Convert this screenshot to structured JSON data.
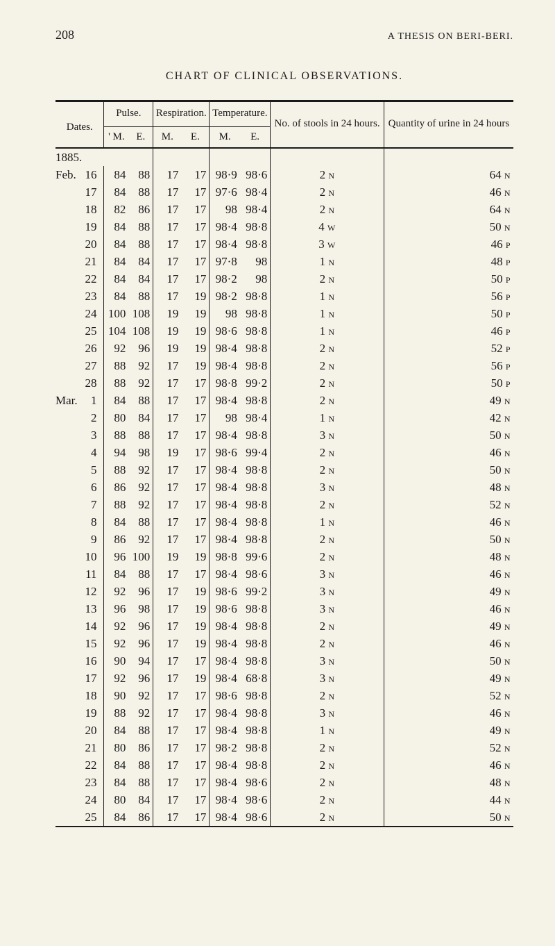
{
  "running_head": {
    "page_number": "208",
    "title": "A THESIS ON BERI-BERI."
  },
  "chart_title": "CHART OF CLINICAL OBSERVATIONS.",
  "header": {
    "dates": "Dates.",
    "pulse": "Pulse.",
    "respiration": "Respiration.",
    "temperature": "Temperature.",
    "stools": "No. of stools in 24 hours.",
    "urine": "Quantity of urine in 24 hours",
    "sub_m": "M.",
    "sub_e": "E.",
    "sub_m_prime": "' M."
  },
  "year": "1885.",
  "rows": [
    {
      "date": "Feb. 16",
      "pulse_m": "84",
      "pulse_e": "88",
      "resp_m": "17",
      "resp_e": "17",
      "temp_m": "98·9",
      "temp_e": "98·6",
      "stools": "2 N",
      "urine": "64 N"
    },
    {
      "date": "17",
      "pulse_m": "84",
      "pulse_e": "88",
      "resp_m": "17",
      "resp_e": "17",
      "temp_m": "97·6",
      "temp_e": "98·4",
      "stools": "2 N",
      "urine": "46 N"
    },
    {
      "date": "18",
      "pulse_m": "82",
      "pulse_e": "86",
      "resp_m": "17",
      "resp_e": "17",
      "temp_m": "98",
      "temp_e": "98·4",
      "stools": "2 N",
      "urine": "64 N"
    },
    {
      "date": "19",
      "pulse_m": "84",
      "pulse_e": "88",
      "resp_m": "17",
      "resp_e": "17",
      "temp_m": "98·4",
      "temp_e": "98·8",
      "stools": "4 W",
      "urine": "50 N"
    },
    {
      "date": "20",
      "pulse_m": "84",
      "pulse_e": "88",
      "resp_m": "17",
      "resp_e": "17",
      "temp_m": "98·4",
      "temp_e": "98·8",
      "stools": "3 W",
      "urine": "46 P"
    },
    {
      "date": "21",
      "pulse_m": "84",
      "pulse_e": "84",
      "resp_m": "17",
      "resp_e": "17",
      "temp_m": "97·8",
      "temp_e": "98",
      "stools": "1 N",
      "urine": "48 P"
    },
    {
      "date": "22",
      "pulse_m": "84",
      "pulse_e": "84",
      "resp_m": "17",
      "resp_e": "17",
      "temp_m": "98·2",
      "temp_e": "98",
      "stools": "2 N",
      "urine": "50 P"
    },
    {
      "date": "23",
      "pulse_m": "84",
      "pulse_e": "88",
      "resp_m": "17",
      "resp_e": "19",
      "temp_m": "98·2",
      "temp_e": "98·8",
      "stools": "1 N",
      "urine": "56 P"
    },
    {
      "date": "24",
      "pulse_m": "100",
      "pulse_e": "108",
      "resp_m": "19",
      "resp_e": "19",
      "temp_m": "98",
      "temp_e": "98·8",
      "stools": "1 N",
      "urine": "50 P"
    },
    {
      "date": "25",
      "pulse_m": "104",
      "pulse_e": "108",
      "resp_m": "19",
      "resp_e": "19",
      "temp_m": "98·6",
      "temp_e": "98·8",
      "stools": "1 N",
      "urine": "46 P"
    },
    {
      "date": "26",
      "pulse_m": "92",
      "pulse_e": "96",
      "resp_m": "19",
      "resp_e": "19",
      "temp_m": "98·4",
      "temp_e": "98·8",
      "stools": "2 N",
      "urine": "52 P"
    },
    {
      "date": "27",
      "pulse_m": "88",
      "pulse_e": "92",
      "resp_m": "17",
      "resp_e": "19",
      "temp_m": "98·4",
      "temp_e": "98·8",
      "stools": "2 N",
      "urine": "56 P"
    },
    {
      "date": "28",
      "pulse_m": "88",
      "pulse_e": "92",
      "resp_m": "17",
      "resp_e": "17",
      "temp_m": "98·8",
      "temp_e": "99·2",
      "stools": "2 N",
      "urine": "50 P"
    },
    {
      "date": "Mar. 1",
      "pulse_m": "84",
      "pulse_e": "88",
      "resp_m": "17",
      "resp_e": "17",
      "temp_m": "98·4",
      "temp_e": "98·8",
      "stools": "2 N",
      "urine": "49 N"
    },
    {
      "date": "2",
      "pulse_m": "80",
      "pulse_e": "84",
      "resp_m": "17",
      "resp_e": "17",
      "temp_m": "98",
      "temp_e": "98·4",
      "stools": "1 N",
      "urine": "42 N"
    },
    {
      "date": "3",
      "pulse_m": "88",
      "pulse_e": "88",
      "resp_m": "17",
      "resp_e": "17",
      "temp_m": "98·4",
      "temp_e": "98·8",
      "stools": "3 N",
      "urine": "50 N"
    },
    {
      "date": "4",
      "pulse_m": "94",
      "pulse_e": "98",
      "resp_m": "19",
      "resp_e": "17",
      "temp_m": "98·6",
      "temp_e": "99·4",
      "stools": "2 N",
      "urine": "46 N"
    },
    {
      "date": "5",
      "pulse_m": "88",
      "pulse_e": "92",
      "resp_m": "17",
      "resp_e": "17",
      "temp_m": "98·4",
      "temp_e": "98·8",
      "stools": "2 N",
      "urine": "50 N"
    },
    {
      "date": "6",
      "pulse_m": "86",
      "pulse_e": "92",
      "resp_m": "17",
      "resp_e": "17",
      "temp_m": "98·4",
      "temp_e": "98·8",
      "stools": "3 N",
      "urine": "48 N"
    },
    {
      "date": "7",
      "pulse_m": "88",
      "pulse_e": "92",
      "resp_m": "17",
      "resp_e": "17",
      "temp_m": "98·4",
      "temp_e": "98·8",
      "stools": "2 N",
      "urine": "52 N"
    },
    {
      "date": "8",
      "pulse_m": "84",
      "pulse_e": "88",
      "resp_m": "17",
      "resp_e": "17",
      "temp_m": "98·4",
      "temp_e": "98·8",
      "stools": "1 N",
      "urine": "46 N"
    },
    {
      "date": "9",
      "pulse_m": "86",
      "pulse_e": "92",
      "resp_m": "17",
      "resp_e": "17",
      "temp_m": "98·4",
      "temp_e": "98·8",
      "stools": "2 N",
      "urine": "50 N"
    },
    {
      "date": "10",
      "pulse_m": "96",
      "pulse_e": "100",
      "resp_m": "19",
      "resp_e": "19",
      "temp_m": "98·8",
      "temp_e": "99·6",
      "stools": "2 N",
      "urine": "48 N"
    },
    {
      "date": "11",
      "pulse_m": "84",
      "pulse_e": "88",
      "resp_m": "17",
      "resp_e": "17",
      "temp_m": "98·4",
      "temp_e": "98·6",
      "stools": "3 N",
      "urine": "46 N"
    },
    {
      "date": "12",
      "pulse_m": "92",
      "pulse_e": "96",
      "resp_m": "17",
      "resp_e": "19",
      "temp_m": "98·6",
      "temp_e": "99·2",
      "stools": "3 N",
      "urine": "49 N"
    },
    {
      "date": "13",
      "pulse_m": "96",
      "pulse_e": "98",
      "resp_m": "17",
      "resp_e": "19",
      "temp_m": "98·6",
      "temp_e": "98·8",
      "stools": "3 N",
      "urine": "46 N"
    },
    {
      "date": "14",
      "pulse_m": "92",
      "pulse_e": "96",
      "resp_m": "17",
      "resp_e": "19",
      "temp_m": "98·4",
      "temp_e": "98·8",
      "stools": "2 N",
      "urine": "49 N"
    },
    {
      "date": "15",
      "pulse_m": "92",
      "pulse_e": "96",
      "resp_m": "17",
      "resp_e": "19",
      "temp_m": "98·4",
      "temp_e": "98·8",
      "stools": "2 N",
      "urine": "46 N"
    },
    {
      "date": "16",
      "pulse_m": "90",
      "pulse_e": "94",
      "resp_m": "17",
      "resp_e": "17",
      "temp_m": "98·4",
      "temp_e": "98·8",
      "stools": "3 N",
      "urine": "50 N"
    },
    {
      "date": "17",
      "pulse_m": "92",
      "pulse_e": "96",
      "resp_m": "17",
      "resp_e": "19",
      "temp_m": "98·4",
      "temp_e": "68·8",
      "stools": "3 N",
      "urine": "49 N"
    },
    {
      "date": "18",
      "pulse_m": "90",
      "pulse_e": "92",
      "resp_m": "17",
      "resp_e": "17",
      "temp_m": "98·6",
      "temp_e": "98·8",
      "stools": "2 N",
      "urine": "52 N"
    },
    {
      "date": "19",
      "pulse_m": "88",
      "pulse_e": "92",
      "resp_m": "17",
      "resp_e": "17",
      "temp_m": "98·4",
      "temp_e": "98·8",
      "stools": "3 N",
      "urine": "46 N"
    },
    {
      "date": "20",
      "pulse_m": "84",
      "pulse_e": "88",
      "resp_m": "17",
      "resp_e": "17",
      "temp_m": "98·4",
      "temp_e": "98·8",
      "stools": "1 N",
      "urine": "49 N"
    },
    {
      "date": "21",
      "pulse_m": "80",
      "pulse_e": "86",
      "resp_m": "17",
      "resp_e": "17",
      "temp_m": "98·2",
      "temp_e": "98·8",
      "stools": "2 N",
      "urine": "52 N"
    },
    {
      "date": "22",
      "pulse_m": "84",
      "pulse_e": "88",
      "resp_m": "17",
      "resp_e": "17",
      "temp_m": "98·4",
      "temp_e": "98·8",
      "stools": "2 N",
      "urine": "46 N"
    },
    {
      "date": "23",
      "pulse_m": "84",
      "pulse_e": "88",
      "resp_m": "17",
      "resp_e": "17",
      "temp_m": "98·4",
      "temp_e": "98·6",
      "stools": "2 N",
      "urine": "48 N"
    },
    {
      "date": "24",
      "pulse_m": "80",
      "pulse_e": "84",
      "resp_m": "17",
      "resp_e": "17",
      "temp_m": "98·4",
      "temp_e": "98·6",
      "stools": "2 N",
      "urine": "44 N"
    },
    {
      "date": "25",
      "pulse_m": "84",
      "pulse_e": "86",
      "resp_m": "17",
      "resp_e": "17",
      "temp_m": "98·4",
      "temp_e": "98·6",
      "stools": "2 N",
      "urine": "50 N"
    }
  ]
}
